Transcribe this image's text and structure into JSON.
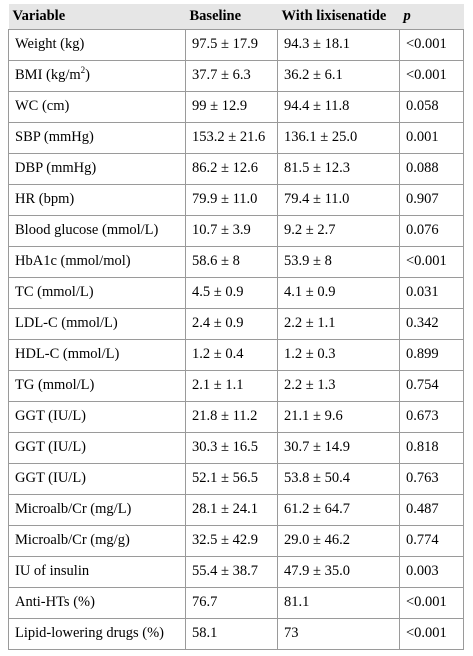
{
  "table": {
    "headers": [
      "Variable",
      "Baseline",
      "With lixisenatide",
      "p"
    ],
    "rows": [
      {
        "variable": "Weight (kg)",
        "baseline": "97.5 ± 17.9",
        "lixisenatide": "94.3 ± 18.1",
        "p": "<0.001"
      },
      {
        "variable": "BMI (kg/m",
        "variable_sup": "2",
        "variable_tail": ")",
        "baseline": "37.7 ± 6.3",
        "lixisenatide": "36.2 ± 6.1",
        "p": "<0.001"
      },
      {
        "variable": "WC (cm)",
        "baseline": "99 ± 12.9",
        "lixisenatide": "94.4 ± 11.8",
        "p": "0.058"
      },
      {
        "variable": "SBP (mmHg)",
        "baseline": "153.2 ± 21.6",
        "lixisenatide": "136.1 ± 25.0",
        "p": "0.001"
      },
      {
        "variable": "DBP (mmHg)",
        "baseline": "86.2 ± 12.6",
        "lixisenatide": "81.5 ± 12.3",
        "p": "0.088"
      },
      {
        "variable": "HR (bpm)",
        "baseline": "79.9 ± 11.0",
        "lixisenatide": "79.4 ± 11.0",
        "p": "0.907"
      },
      {
        "variable": "Blood glucose (mmol/L)",
        "baseline": "10.7 ± 3.9",
        "lixisenatide": "9.2 ± 2.7",
        "p": "0.076"
      },
      {
        "variable": "HbA1c (mmol/mol)",
        "baseline": "58.6 ± 8",
        "lixisenatide": "53.9 ± 8",
        "p": "<0.001"
      },
      {
        "variable": "TC (mmol/L)",
        "baseline": "4.5 ± 0.9",
        "lixisenatide": "4.1 ± 0.9",
        "p": "0.031"
      },
      {
        "variable": "LDL-C (mmol/L)",
        "baseline": "2.4 ± 0.9",
        "lixisenatide": "2.2 ± 1.1",
        "p": "0.342"
      },
      {
        "variable": "HDL-C (mmol/L)",
        "baseline": "1.2 ± 0.4",
        "lixisenatide": "1.2 ± 0.3",
        "p": "0.899"
      },
      {
        "variable": "TG (mmol/L)",
        "baseline": "2.1 ± 1.1",
        "lixisenatide": "2.2 ± 1.3",
        "p": "0.754"
      },
      {
        "variable": "GGT (IU/L)",
        "baseline": "21.8 ± 11.2",
        "lixisenatide": "21.1 ± 9.6",
        "p": "0.673"
      },
      {
        "variable": "GGT (IU/L)",
        "baseline": "30.3 ± 16.5",
        "lixisenatide": "30.7 ± 14.9",
        "p": "0.818"
      },
      {
        "variable": "GGT (IU/L)",
        "baseline": "52.1 ± 56.5",
        "lixisenatide": "53.8 ± 50.4",
        "p": "0.763"
      },
      {
        "variable": "Microalb/Cr (mg/L)",
        "baseline": "28.1 ± 24.1",
        "lixisenatide": "61.2 ± 64.7",
        "p": "0.487"
      },
      {
        "variable": "Microalb/Cr (mg/g)",
        "baseline": "32.5 ± 42.9",
        "lixisenatide": "29.0 ± 46.2",
        "p": "0.774"
      },
      {
        "variable": "IU of insulin",
        "baseline": "55.4 ± 38.7",
        "lixisenatide": "47.9 ± 35.0",
        "p": "0.003"
      },
      {
        "variable": "Anti-HTs (%)",
        "baseline": "76.7",
        "lixisenatide": "81.1",
        "p": "<0.001"
      },
      {
        "variable": "Lipid-lowering drugs (%)",
        "baseline": "58.1",
        "lixisenatide": "73",
        "p": "<0.001"
      }
    ]
  }
}
